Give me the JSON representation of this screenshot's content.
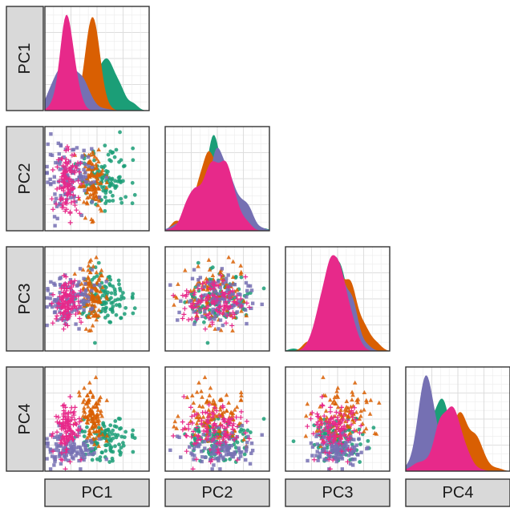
{
  "chart_data": {
    "type": "scatter-matrix",
    "variables": [
      "PC1",
      "PC2",
      "PC3",
      "PC4"
    ],
    "grid": true,
    "legend": "none",
    "diagonal": "density",
    "lower": "scatter",
    "groups": [
      {
        "color": "#1B9E77",
        "marker": "circle"
      },
      {
        "color": "#D95F02",
        "marker": "triangle"
      },
      {
        "color": "#7570B3",
        "marker": "square"
      },
      {
        "color": "#E7298A",
        "marker": "plus"
      }
    ],
    "group_means": [
      [
        0.6,
        0.5,
        0.5,
        0.3
      ],
      [
        0.45,
        0.48,
        0.52,
        0.52
      ],
      [
        0.25,
        0.5,
        0.48,
        0.2
      ],
      [
        0.22,
        0.47,
        0.47,
        0.4
      ]
    ],
    "group_sds": [
      [
        0.12,
        0.15,
        0.13,
        0.1
      ],
      [
        0.06,
        0.15,
        0.13,
        0.14
      ],
      [
        0.13,
        0.15,
        0.12,
        0.08
      ],
      [
        0.06,
        0.15,
        0.12,
        0.12
      ]
    ],
    "points_per_group": 110
  }
}
